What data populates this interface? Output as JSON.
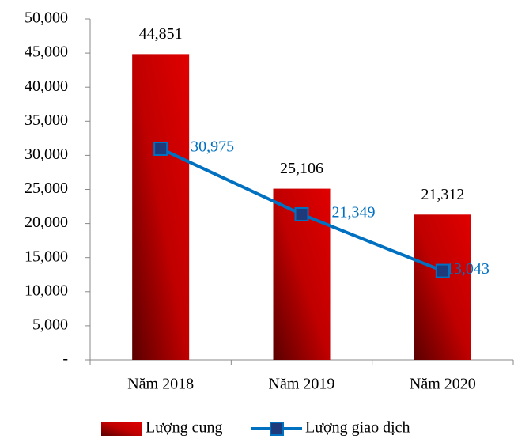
{
  "chart_data": {
    "type": "bar-line",
    "categories": [
      "Năm 2018",
      "Năm 2019",
      "Năm 2020"
    ],
    "series": [
      {
        "name": "Lượng cung",
        "type": "bar",
        "color": "#c00000",
        "values": [
          44851,
          25106,
          21312
        ],
        "value_labels": [
          "44,851",
          "25,106",
          "21,312"
        ]
      },
      {
        "name": "Lượng giao dịch",
        "type": "line",
        "color": "#0070c0",
        "values": [
          30975,
          21349,
          13043
        ],
        "value_labels": [
          "30,975",
          "21,349",
          "13,043"
        ]
      }
    ],
    "ylim": [
      0,
      50000
    ],
    "yticks": [
      {
        "value": 0,
        "label": "-"
      },
      {
        "value": 5000,
        "label": "5,000"
      },
      {
        "value": 10000,
        "label": "10,000"
      },
      {
        "value": 15000,
        "label": "15,000"
      },
      {
        "value": 20000,
        "label": "20,000"
      },
      {
        "value": 25000,
        "label": "25,000"
      },
      {
        "value": 30000,
        "label": "30,000"
      },
      {
        "value": 35000,
        "label": "35,000"
      },
      {
        "value": 40000,
        "label": "40,000"
      },
      {
        "value": 45000,
        "label": "45,000"
      },
      {
        "value": 50000,
        "label": "50,000"
      }
    ],
    "legend": "bottom"
  }
}
